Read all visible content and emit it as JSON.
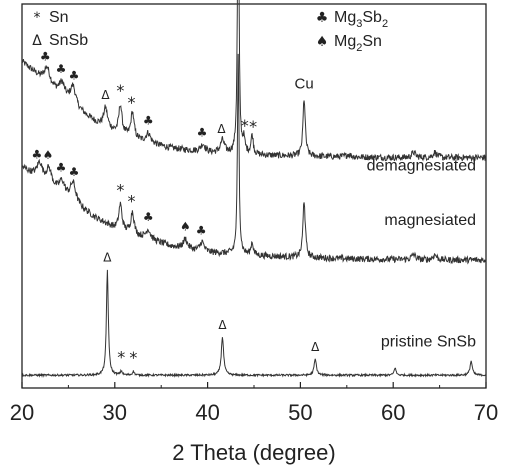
{
  "chart_data": {
    "type": "line",
    "title": "",
    "xlabel": "2 Theta (degree)",
    "ylabel": "",
    "xlim": [
      20,
      70
    ],
    "xticks": [
      20,
      30,
      40,
      50,
      60,
      70
    ],
    "y_axis_shown": false,
    "grid": false,
    "legend": {
      "position": "top",
      "entries": [
        {
          "symbol": "*",
          "label": "Sn"
        },
        {
          "symbol": "Δ",
          "label": "SnSb"
        },
        {
          "symbol": "♣",
          "label": "Mg",
          "sub1": "3",
          "mid": "Sb",
          "sub2": "2"
        },
        {
          "symbol": "♠",
          "label": "Mg",
          "sub1": "2",
          "mid": "Sn",
          "sub2": ""
        }
      ]
    },
    "series": [
      {
        "name": "demagnesiated",
        "baseline": 0.8,
        "noise": 0.05,
        "background": [
          [
            20,
            2.3
          ],
          [
            22,
            2.05
          ],
          [
            24,
            1.8
          ],
          [
            26,
            1.55
          ],
          [
            28,
            1.35
          ],
          [
            30,
            1.2
          ],
          [
            33,
            1.05
          ],
          [
            36,
            0.95
          ],
          [
            40,
            0.88
          ],
          [
            45,
            0.84
          ],
          [
            50,
            0.82
          ],
          [
            55,
            0.81
          ],
          [
            60,
            0.8
          ],
          [
            65,
            0.8
          ],
          [
            70,
            0.8
          ]
        ],
        "peaks": [
          {
            "x": 22.7,
            "h": 0.25,
            "w": 0.35
          },
          {
            "x": 24.3,
            "h": 0.2,
            "w": 0.35
          },
          {
            "x": 25.5,
            "h": 0.3,
            "w": 0.35
          },
          {
            "x": 29.0,
            "h": 0.3,
            "w": 0.25
          },
          {
            "x": 30.6,
            "h": 0.45,
            "w": 0.2
          },
          {
            "x": 31.9,
            "h": 0.4,
            "w": 0.2
          },
          {
            "x": 33.6,
            "h": 0.15,
            "w": 0.3
          },
          {
            "x": 39.5,
            "h": 0.12,
            "w": 0.3
          },
          {
            "x": 41.6,
            "h": 0.2,
            "w": 0.25
          },
          {
            "x": 43.3,
            "h": 4.4,
            "w": 0.1
          },
          {
            "x": 43.9,
            "h": 0.2,
            "w": 0.15
          },
          {
            "x": 44.8,
            "h": 0.3,
            "w": 0.15
          },
          {
            "x": 50.4,
            "h": 0.9,
            "w": 0.15
          },
          {
            "x": 55.2,
            "h": 0.04,
            "w": 0.3
          },
          {
            "x": 62.2,
            "h": 0.08,
            "w": 0.25
          },
          {
            "x": 64.5,
            "h": 0.08,
            "w": 0.25
          }
        ],
        "annotations": [
          {
            "symbol": "♣",
            "x": 22.5
          },
          {
            "symbol": "♣",
            "x": 24.2
          },
          {
            "symbol": "♣",
            "x": 25.6
          },
          {
            "symbol": "Δ",
            "x": 29.0
          },
          {
            "symbol": "*",
            "x": 30.6
          },
          {
            "symbol": "*",
            "x": 31.8
          },
          {
            "symbol": "♣",
            "x": 33.6
          },
          {
            "symbol": "♣",
            "x": 39.4
          },
          {
            "symbol": "Δ",
            "x": 41.5
          },
          {
            "symbol": "*",
            "x": 44.0
          },
          {
            "symbol": "*",
            "x": 44.9
          },
          {
            "symbol": "Cu",
            "x": 43.3
          },
          {
            "symbol": "Cu",
            "x": 50.4
          }
        ]
      },
      {
        "name": "magnesiated",
        "baseline": 0.0,
        "noise": 0.05,
        "background": [
          [
            20,
            1.45
          ],
          [
            22,
            1.25
          ],
          [
            24,
            1.05
          ],
          [
            26,
            0.85
          ],
          [
            28,
            0.65
          ],
          [
            30,
            0.5
          ],
          [
            33,
            0.35
          ],
          [
            36,
            0.22
          ],
          [
            40,
            0.12
          ],
          [
            45,
            0.07
          ],
          [
            50,
            0.04
          ],
          [
            55,
            0.02
          ],
          [
            60,
            0.01
          ],
          [
            65,
            0.0
          ],
          [
            70,
            0.0
          ]
        ],
        "peaks": [
          {
            "x": 21.9,
            "h": 0.25,
            "w": 0.35
          },
          {
            "x": 22.9,
            "h": 0.25,
            "w": 0.35
          },
          {
            "x": 24.3,
            "h": 0.2,
            "w": 0.35
          },
          {
            "x": 25.5,
            "h": 0.3,
            "w": 0.35
          },
          {
            "x": 30.6,
            "h": 0.4,
            "w": 0.2
          },
          {
            "x": 31.9,
            "h": 0.35,
            "w": 0.2
          },
          {
            "x": 33.6,
            "h": 0.15,
            "w": 0.3
          },
          {
            "x": 37.6,
            "h": 0.15,
            "w": 0.25
          },
          {
            "x": 39.4,
            "h": 0.15,
            "w": 0.25
          },
          {
            "x": 43.3,
            "h": 3.1,
            "w": 0.1
          },
          {
            "x": 44.8,
            "h": 0.2,
            "w": 0.15
          },
          {
            "x": 50.4,
            "h": 0.9,
            "w": 0.15
          },
          {
            "x": 62.2,
            "h": 0.08,
            "w": 0.25
          },
          {
            "x": 64.5,
            "h": 0.08,
            "w": 0.25
          }
        ],
        "annotations": [
          {
            "symbol": "♣",
            "x": 21.6
          },
          {
            "symbol": "♠",
            "x": 22.8
          },
          {
            "symbol": "♣",
            "x": 24.2
          },
          {
            "symbol": "♣",
            "x": 25.6
          },
          {
            "symbol": "*",
            "x": 30.6
          },
          {
            "symbol": "*",
            "x": 31.8
          },
          {
            "symbol": "♣",
            "x": 33.6
          },
          {
            "symbol": "♠",
            "x": 37.6
          },
          {
            "symbol": "♣",
            "x": 39.3
          }
        ]
      },
      {
        "name": "pristine SnSb",
        "baseline": -1.8,
        "noise": 0.015,
        "background": [
          [
            20,
            0
          ],
          [
            70,
            0
          ]
        ],
        "peaks": [
          {
            "x": 29.2,
            "h": 1.65,
            "w": 0.12
          },
          {
            "x": 30.7,
            "h": 0.06,
            "w": 0.12
          },
          {
            "x": 32.0,
            "h": 0.06,
            "w": 0.12
          },
          {
            "x": 41.6,
            "h": 0.6,
            "w": 0.15
          },
          {
            "x": 51.6,
            "h": 0.25,
            "w": 0.15
          },
          {
            "x": 60.2,
            "h": 0.12,
            "w": 0.12
          },
          {
            "x": 68.4,
            "h": 0.22,
            "w": 0.15
          }
        ],
        "annotations": [
          {
            "symbol": "Δ",
            "x": 29.2
          },
          {
            "symbol": "*",
            "x": 30.7
          },
          {
            "symbol": "*",
            "x": 32.0
          },
          {
            "symbol": "Δ",
            "x": 41.6
          },
          {
            "symbol": "Δ",
            "x": 51.6
          }
        ]
      }
    ]
  }
}
